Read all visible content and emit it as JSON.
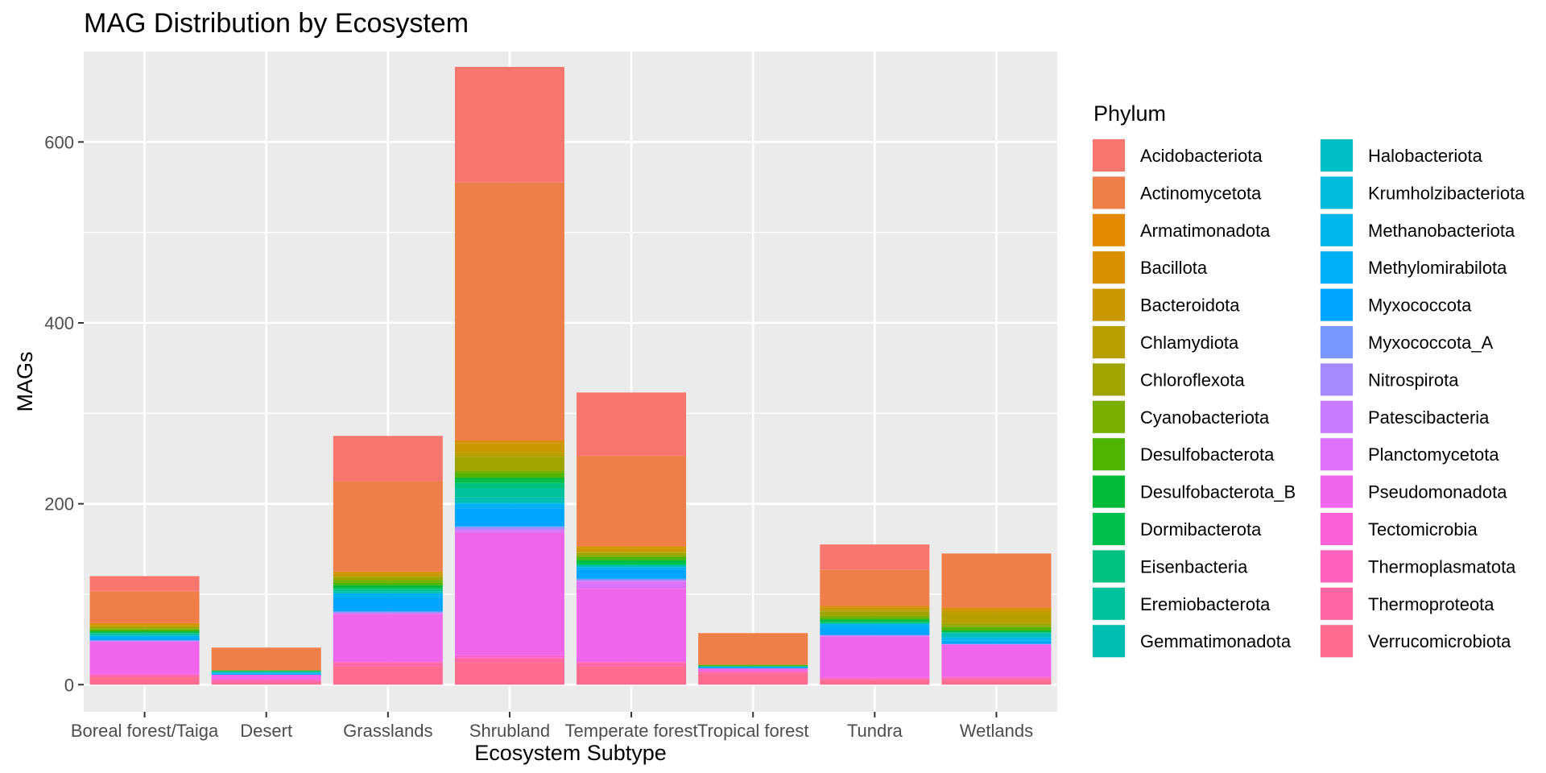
{
  "chart_data": {
    "type": "bar",
    "stacked": true,
    "title": "MAG Distribution by Ecosystem",
    "xlabel": "Ecosystem Subtype",
    "ylabel": "MAGs",
    "ylim": [
      -30,
      700
    ],
    "yticks": [
      0,
      200,
      400,
      600
    ],
    "grid": true,
    "legend_title": "Phylum",
    "legend_position": "right",
    "categories": [
      "Boreal forest/Taiga",
      "Desert",
      "Grasslands",
      "Shrubland",
      "Temperate forest",
      "Tropical forest",
      "Tundra",
      "Wetlands"
    ],
    "series": [
      {
        "name": "Acidobacteriota",
        "color": "#F8766D",
        "values": [
          17,
          0,
          50,
          128,
          70,
          0,
          28,
          0
        ]
      },
      {
        "name": "Actinomycetota",
        "color": "#EF7F49",
        "values": [
          35,
          25,
          100,
          285,
          100,
          35,
          40,
          60
        ]
      },
      {
        "name": "Armatimonadota",
        "color": "#E38900",
        "values": [
          0,
          0,
          0,
          0,
          0,
          0,
          0,
          0
        ]
      },
      {
        "name": "Bacillota",
        "color": "#D89000",
        "values": [
          2,
          0,
          2,
          3,
          2,
          0,
          2,
          2
        ]
      },
      {
        "name": "Bacteroidota",
        "color": "#C99800",
        "values": [
          2,
          0,
          3,
          10,
          4,
          0,
          3,
          3
        ]
      },
      {
        "name": "Chlamydiota",
        "color": "#B79F00",
        "values": [
          0,
          0,
          1,
          5,
          1,
          0,
          1,
          12
        ]
      },
      {
        "name": "Chloroflexota",
        "color": "#9FA400",
        "values": [
          2,
          0,
          3,
          15,
          3,
          0,
          5,
          3
        ]
      },
      {
        "name": "Cyanobacteriota",
        "color": "#7CAE00",
        "values": [
          1,
          0,
          3,
          3,
          2,
          0,
          2,
          2
        ]
      },
      {
        "name": "Desulfobacterota",
        "color": "#4FB400",
        "values": [
          2,
          1,
          3,
          5,
          3,
          1,
          2,
          3
        ]
      },
      {
        "name": "Desulfobacterota_B",
        "color": "#00BA38",
        "values": [
          1,
          0,
          2,
          3,
          2,
          0,
          1,
          1
        ]
      },
      {
        "name": "Dormibacterota",
        "color": "#00BF4C",
        "values": [
          1,
          0,
          2,
          3,
          3,
          1,
          2,
          1
        ]
      },
      {
        "name": "Eisenbacteria",
        "color": "#00C17F",
        "values": [
          1,
          0,
          2,
          6,
          1,
          0,
          1,
          1
        ]
      },
      {
        "name": "Eremiobacterota",
        "color": "#00C19A",
        "values": [
          0,
          0,
          1,
          10,
          0,
          0,
          0,
          0
        ]
      },
      {
        "name": "Gemmatimonadota",
        "color": "#00BFB2",
        "values": [
          2,
          1,
          2,
          6,
          2,
          0,
          1,
          2
        ]
      },
      {
        "name": "Halobacteriota",
        "color": "#00BFC4",
        "values": [
          0,
          1,
          0,
          0,
          0,
          0,
          0,
          3
        ]
      },
      {
        "name": "Krumholzibacteriota",
        "color": "#00BBDB",
        "values": [
          0,
          0,
          0,
          1,
          0,
          0,
          0,
          1
        ]
      },
      {
        "name": "Methanobacteriota",
        "color": "#00B6EB",
        "values": [
          0,
          1,
          0,
          0,
          0,
          0,
          0,
          2
        ]
      },
      {
        "name": "Methylomirabilota",
        "color": "#00B0F6",
        "values": [
          3,
          0,
          5,
          5,
          3,
          1,
          4,
          2
        ]
      },
      {
        "name": "Myxococcota",
        "color": "#00A5FF",
        "values": [
          2,
          1,
          15,
          20,
          10,
          1,
          8,
          2
        ]
      },
      {
        "name": "Myxococcota_A",
        "color": "#7997FF",
        "values": [
          0,
          0,
          1,
          1,
          1,
          0,
          0,
          0
        ]
      },
      {
        "name": "Nitrospirota",
        "color": "#A58AFF",
        "values": [
          1,
          0,
          1,
          2,
          1,
          0,
          1,
          0
        ]
      },
      {
        "name": "Patescibacteria",
        "color": "#C77CFF",
        "values": [
          0,
          0,
          0,
          2,
          1,
          0,
          0,
          0
        ]
      },
      {
        "name": "Planctomycetota",
        "color": "#DE71F9",
        "values": [
          1,
          0,
          1,
          2,
          8,
          0,
          1,
          1
        ]
      },
      {
        "name": "Pseudomonadota",
        "color": "#F066EA",
        "values": [
          35,
          5,
          52,
          135,
          80,
          3,
          45,
          35
        ]
      },
      {
        "name": "Tectomicrobia",
        "color": "#FB61D7",
        "values": [
          1,
          0,
          1,
          3,
          1,
          0,
          1,
          1
        ]
      },
      {
        "name": "Thermoplasmatota",
        "color": "#FF62BC",
        "values": [
          1,
          2,
          1,
          1,
          1,
          1,
          1,
          1
        ]
      },
      {
        "name": "Thermoproteota",
        "color": "#FF67A4",
        "values": [
          2,
          2,
          4,
          4,
          4,
          2,
          1,
          2
        ]
      },
      {
        "name": "Verrucomicrobiota",
        "color": "#FF6C90",
        "values": [
          8,
          2,
          20,
          25,
          20,
          12,
          5,
          5
        ]
      }
    ]
  }
}
